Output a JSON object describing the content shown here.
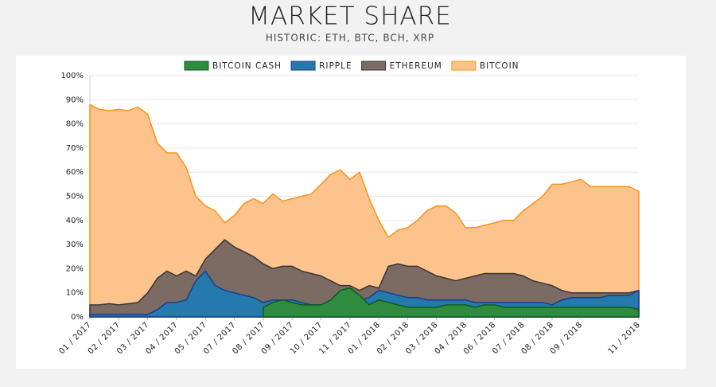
{
  "chart_data": {
    "type": "area",
    "title": "MARKET SHARE",
    "subtitle": "HISTORIC: ETH, BTC, BCH, XRP",
    "categories": [
      "01 / 2017",
      null,
      null,
      "02 / 2017",
      null,
      null,
      "03 / 2017",
      null,
      null,
      "04 / 2017",
      null,
      null,
      "05 / 2017",
      null,
      null,
      "07 / 2017",
      null,
      null,
      "08 / 2017",
      null,
      null,
      "09 / 2017",
      null,
      null,
      "10 / 2017",
      null,
      null,
      "11 / 2017",
      null,
      null,
      "01 / 2018",
      null,
      null,
      "02 / 2018",
      null,
      null,
      "03 / 2018",
      null,
      null,
      "04 / 2018",
      null,
      null,
      "06 / 2018",
      null,
      null,
      "07 / 2018",
      null,
      null,
      "08 / 2018",
      null,
      null,
      "09 / 2018",
      null,
      null,
      null,
      null,
      null,
      "11 / 2018"
    ],
    "series": [
      {
        "name": "BITCOIN CASH",
        "color": "#2f8c3f",
        "line_color": "#0d5a1f",
        "values": [
          null,
          null,
          null,
          null,
          null,
          null,
          null,
          null,
          null,
          null,
          null,
          null,
          null,
          null,
          null,
          null,
          null,
          null,
          4,
          6,
          7,
          6,
          5,
          5,
          5,
          7,
          11,
          12,
          9,
          5,
          7,
          6,
          5,
          4,
          4,
          4,
          4,
          5,
          5,
          5,
          4,
          5,
          5,
          4,
          4,
          4,
          4,
          4,
          4,
          4,
          4,
          4,
          4,
          4,
          4,
          4,
          4,
          3
        ]
      },
      {
        "name": "RIPPLE",
        "color": "#2479ad",
        "line_color": "#1b3c8e",
        "values": [
          1,
          1,
          1,
          1,
          1,
          1,
          1,
          3,
          6,
          6,
          7,
          15,
          19,
          13,
          11,
          10,
          9,
          8,
          6,
          7,
          7,
          7,
          6,
          5,
          5,
          4,
          4,
          4,
          7,
          8,
          11,
          10,
          9,
          8,
          8,
          7,
          7,
          7,
          7,
          7,
          6,
          6,
          6,
          6,
          6,
          6,
          6,
          6,
          5,
          7,
          8,
          8,
          8,
          8,
          9,
          9,
          9,
          11
        ]
      },
      {
        "name": "ETHEREUM",
        "color": "#7b6b62",
        "line_color": "#3b3434",
        "values": [
          5,
          5,
          5.5,
          5,
          5.5,
          6,
          10,
          16,
          19,
          17,
          19,
          17,
          24,
          28,
          32,
          29,
          27,
          25,
          22,
          20,
          21,
          21,
          19,
          18,
          17,
          15,
          13,
          13,
          11,
          13,
          12,
          21,
          22,
          21,
          21,
          19,
          17,
          16,
          15,
          16,
          17,
          18,
          18,
          18,
          18,
          17,
          15,
          14,
          13,
          11,
          10,
          10,
          10,
          10,
          10,
          10,
          10,
          11
        ]
      },
      {
        "name": "BITCOIN",
        "color": "#fdc38c",
        "line_color": "#f7931a",
        "values": [
          88,
          86,
          85.5,
          86,
          85.5,
          87,
          84,
          72,
          68,
          68,
          62,
          50,
          46,
          44,
          39,
          42,
          47,
          49,
          47,
          51,
          48,
          49,
          50,
          51,
          55,
          59,
          61,
          57,
          60,
          49,
          40,
          33,
          36,
          37,
          40,
          44,
          46,
          46,
          43,
          37,
          37,
          38,
          39,
          40,
          40,
          44,
          47,
          50,
          55,
          55,
          56,
          57,
          54,
          54,
          54,
          54,
          54,
          52
        ]
      }
    ],
    "ylim": [
      0,
      100
    ],
    "yticks": [
      {
        "value": 0,
        "label": "0%"
      },
      {
        "value": 10,
        "label": "10%"
      },
      {
        "value": 20,
        "label": "20%"
      },
      {
        "value": 30,
        "label": "30%"
      },
      {
        "value": 40,
        "label": "40%"
      },
      {
        "value": 50,
        "label": "50%"
      },
      {
        "value": 60,
        "label": "60%"
      },
      {
        "value": 70,
        "label": "70%"
      },
      {
        "value": 80,
        "label": "80%"
      },
      {
        "value": 90,
        "label": "90%"
      },
      {
        "value": 100,
        "label": "100%"
      }
    ],
    "grid": true
  }
}
